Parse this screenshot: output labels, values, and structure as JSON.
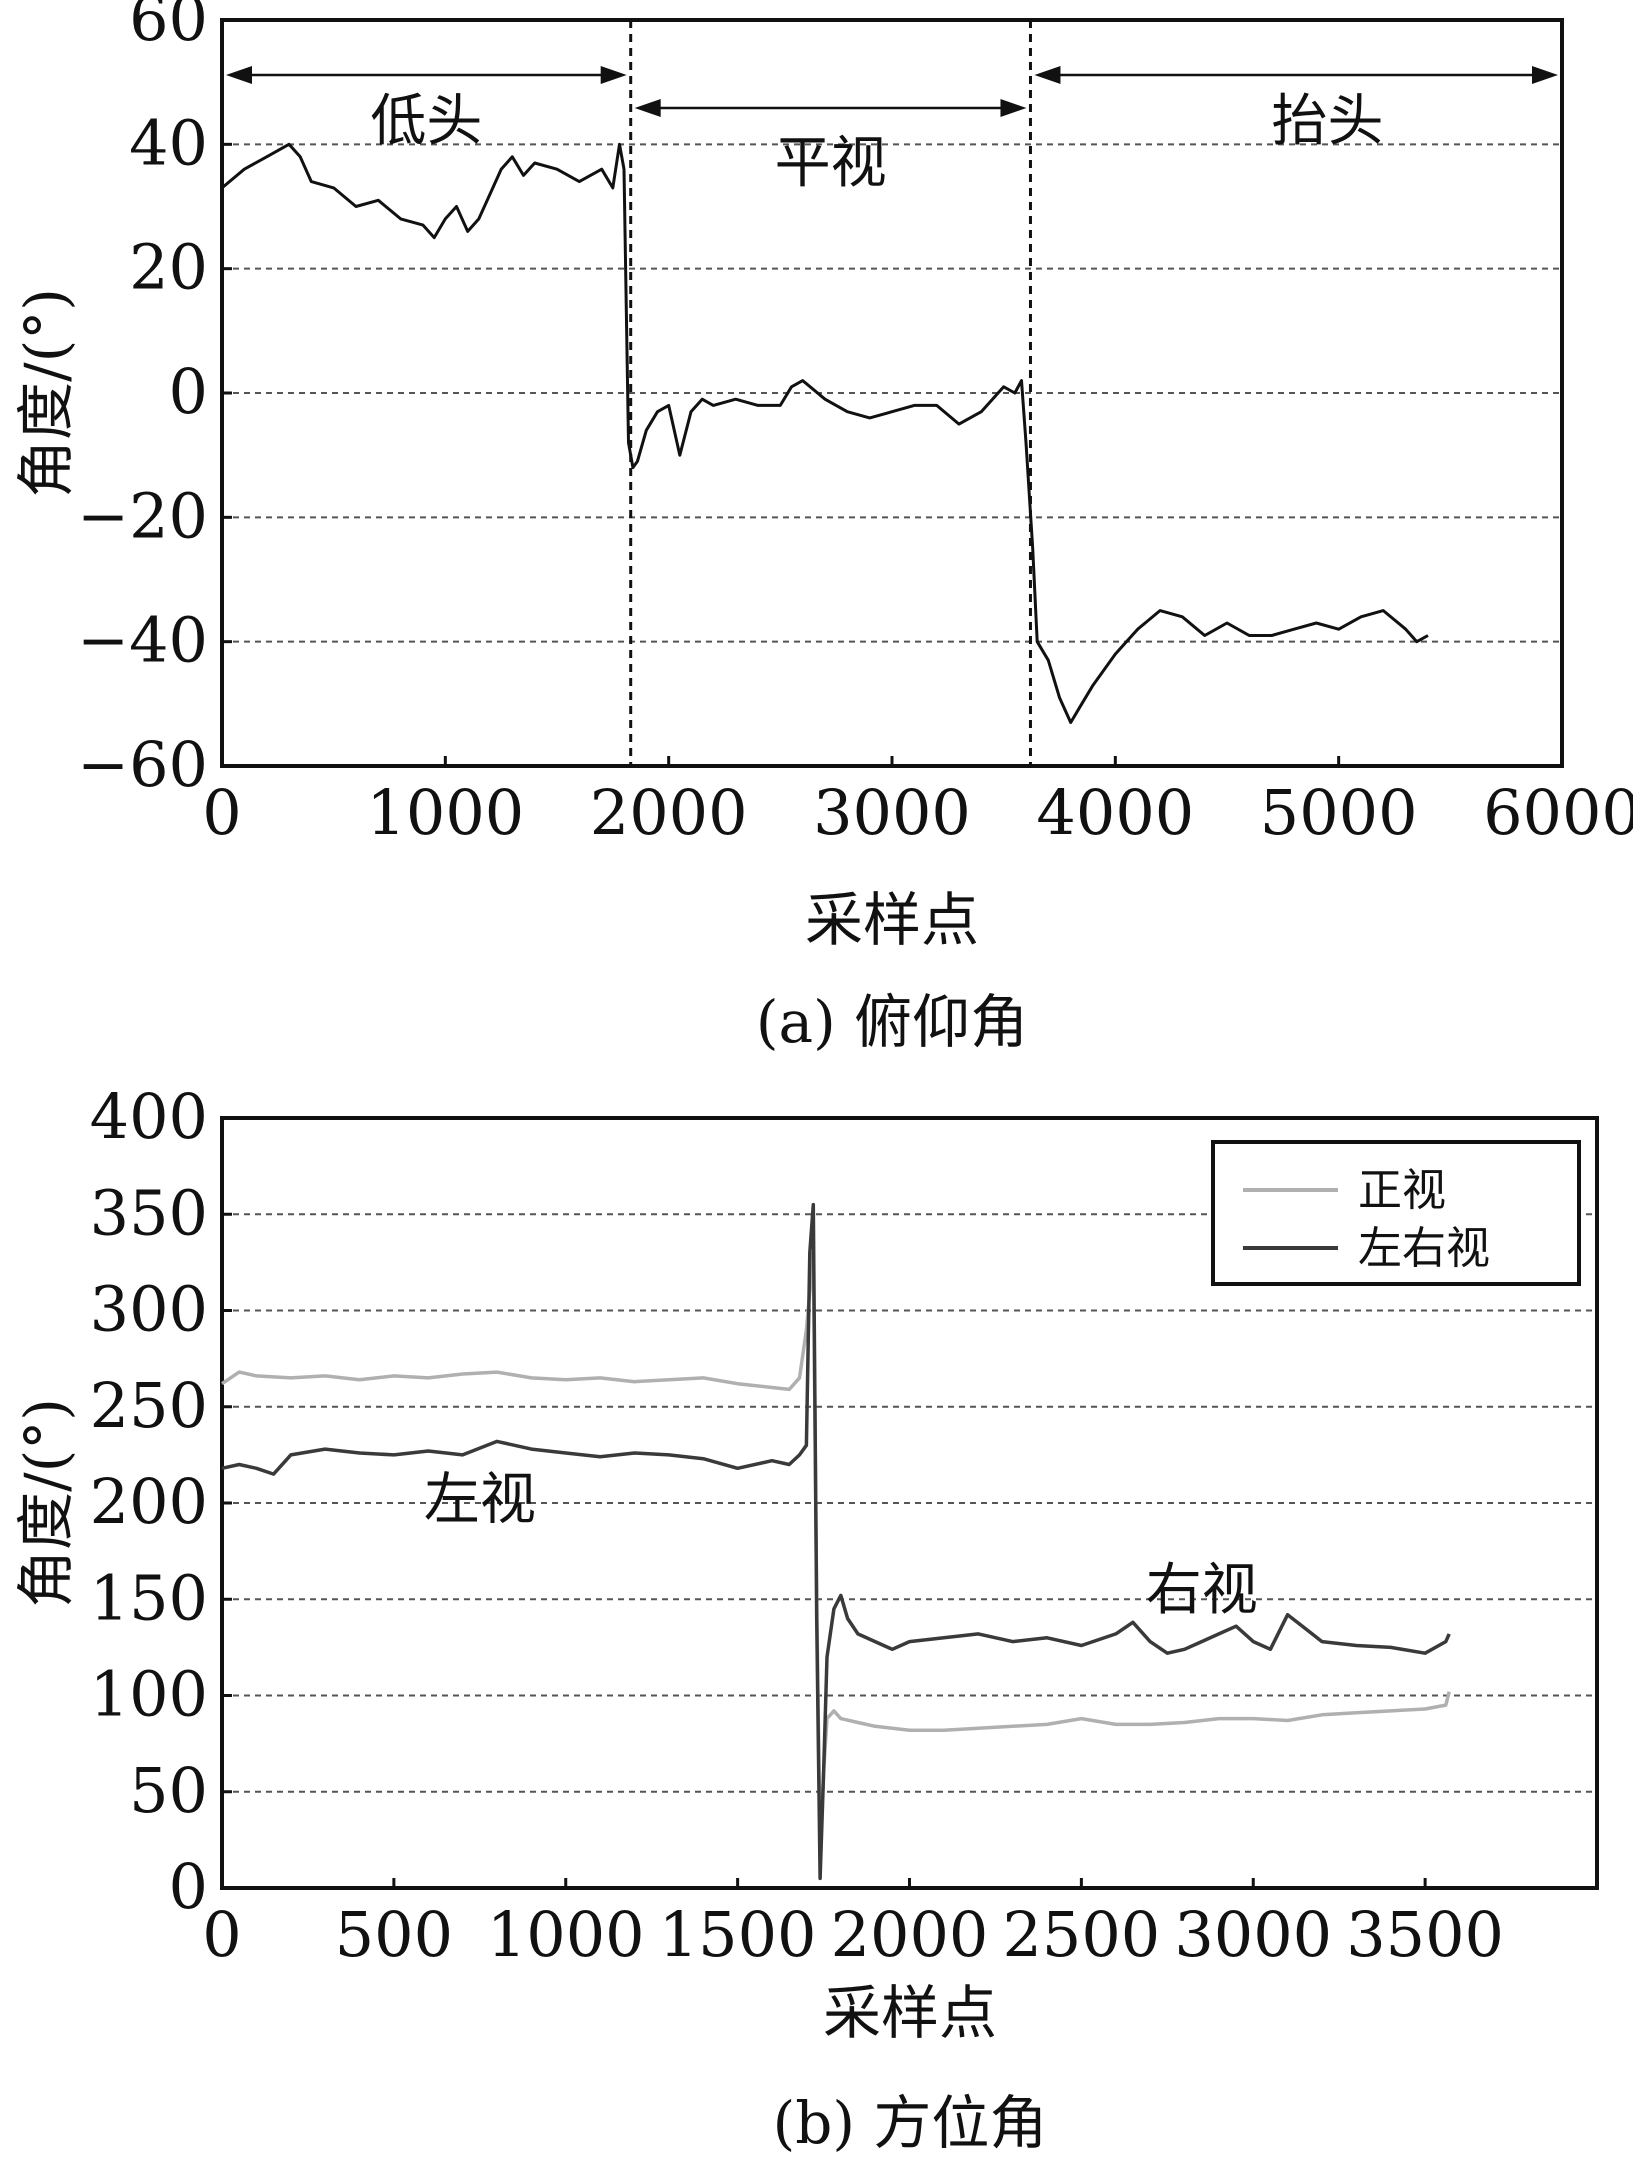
{
  "chart_data": [
    {
      "type": "line",
      "caption": "(a) 俯仰角",
      "xlabel": "采样点",
      "ylabel": "角度/(°)",
      "xlim": [
        0,
        6000
      ],
      "ylim": [
        -60,
        60
      ],
      "xticks": [
        "0",
        "1000",
        "2000",
        "3000",
        "4000",
        "5000",
        "6000"
      ],
      "yticks": [
        "−60",
        "−40",
        "−20",
        "0",
        "20",
        "40",
        "60"
      ],
      "grid": true,
      "regions": [
        {
          "label": "低头",
          "x_start": 0,
          "x_end": 1830
        },
        {
          "label": "平视",
          "x_start": 1830,
          "x_end": 3620
        },
        {
          "label": "抬头",
          "x_start": 3620,
          "x_end": 6000
        }
      ],
      "boundaries": [
        1830,
        3620
      ],
      "series": [
        {
          "color": "#111111",
          "x": [
            0,
            100,
            200,
            300,
            350,
            400,
            500,
            600,
            700,
            800,
            900,
            950,
            1000,
            1050,
            1100,
            1150,
            1200,
            1250,
            1300,
            1350,
            1400,
            1500,
            1600,
            1700,
            1750,
            1780,
            1800,
            1820,
            1840,
            1860,
            1900,
            1950,
            2000,
            2050,
            2100,
            2150,
            2200,
            2300,
            2400,
            2500,
            2550,
            2600,
            2700,
            2800,
            2900,
            3000,
            3100,
            3200,
            3300,
            3400,
            3450,
            3500,
            3550,
            3580,
            3600,
            3630,
            3650,
            3700,
            3750,
            3800,
            3850,
            3900,
            4000,
            4100,
            4200,
            4300,
            4400,
            4500,
            4600,
            4700,
            4800,
            4900,
            5000,
            5100,
            5200,
            5300,
            5350,
            5400
          ],
          "y": [
            33,
            36,
            38,
            40,
            38,
            34,
            33,
            30,
            31,
            28,
            27,
            25,
            28,
            30,
            26,
            28,
            32,
            36,
            38,
            35,
            37,
            36,
            34,
            36,
            33,
            40,
            36,
            -8,
            -12,
            -11,
            -6,
            -3,
            -2,
            -10,
            -3,
            -1,
            -2,
            -1,
            -2,
            -2,
            1,
            2,
            -1,
            -3,
            -4,
            -3,
            -2,
            -2,
            -5,
            -3,
            -1,
            1,
            0,
            2,
            -8,
            -25,
            -40,
            -43,
            -49,
            -53,
            -50,
            -47,
            -42,
            -38,
            -35,
            -36,
            -39,
            -37,
            -39,
            -39,
            -38,
            -37,
            -38,
            -36,
            -35,
            -38,
            -40,
            -39
          ]
        }
      ]
    },
    {
      "type": "line",
      "caption": "(b) 方位角",
      "xlabel": "采样点",
      "ylabel": "角度/(°)",
      "xlim": [
        0,
        4000
      ],
      "ylim": [
        0,
        400
      ],
      "xticks": [
        "0",
        "500",
        "1000",
        "1500",
        "2000",
        "2500",
        "3000",
        "3500"
      ],
      "yticks": [
        "0",
        "50",
        "100",
        "150",
        "200",
        "250",
        "300",
        "350",
        "400"
      ],
      "grid": true,
      "legend_position": "top-right",
      "annotations": [
        {
          "text": "左视",
          "x": 750,
          "y": 192
        },
        {
          "text": "右视",
          "x": 2850,
          "y": 145
        }
      ],
      "series": [
        {
          "name": "正视",
          "color": "#b0b0b0",
          "x": [
            0,
            50,
            100,
            200,
            300,
            400,
            500,
            600,
            700,
            800,
            900,
            1000,
            1100,
            1200,
            1300,
            1400,
            1500,
            1600,
            1650,
            1680,
            1700,
            1720,
            1730,
            1740,
            1750,
            1760,
            1780,
            1800,
            1850,
            1900,
            2000,
            2100,
            2200,
            2300,
            2400,
            2500,
            2600,
            2700,
            2800,
            2900,
            3000,
            3100,
            3200,
            3300,
            3400,
            3500,
            3560,
            3570
          ],
          "y": [
            262,
            268,
            266,
            265,
            266,
            264,
            266,
            265,
            267,
            268,
            265,
            264,
            265,
            263,
            264,
            265,
            262,
            260,
            259,
            265,
            290,
            330,
            150,
            20,
            60,
            88,
            92,
            88,
            86,
            84,
            82,
            82,
            83,
            84,
            85,
            88,
            85,
            85,
            86,
            88,
            88,
            87,
            90,
            91,
            92,
            93,
            95,
            102
          ]
        },
        {
          "name": "左右视",
          "color": "#3a3a3a",
          "x": [
            0,
            50,
            100,
            150,
            200,
            300,
            400,
            500,
            600,
            700,
            800,
            900,
            1000,
            1100,
            1200,
            1300,
            1400,
            1500,
            1600,
            1650,
            1680,
            1700,
            1710,
            1720,
            1730,
            1740,
            1750,
            1760,
            1780,
            1800,
            1820,
            1850,
            1900,
            1950,
            2000,
            2100,
            2200,
            2300,
            2400,
            2500,
            2600,
            2650,
            2700,
            2750,
            2800,
            2850,
            2900,
            2950,
            3000,
            3050,
            3100,
            3150,
            3200,
            3300,
            3400,
            3500,
            3560,
            3570
          ],
          "y": [
            218,
            220,
            218,
            215,
            225,
            228,
            226,
            225,
            227,
            225,
            232,
            228,
            226,
            224,
            226,
            225,
            223,
            218,
            222,
            220,
            225,
            230,
            330,
            355,
            140,
            5,
            60,
            120,
            145,
            152,
            140,
            132,
            128,
            124,
            128,
            130,
            132,
            128,
            130,
            126,
            132,
            138,
            128,
            122,
            124,
            128,
            132,
            136,
            128,
            124,
            142,
            135,
            128,
            126,
            125,
            122,
            128,
            132
          ]
        }
      ]
    }
  ]
}
